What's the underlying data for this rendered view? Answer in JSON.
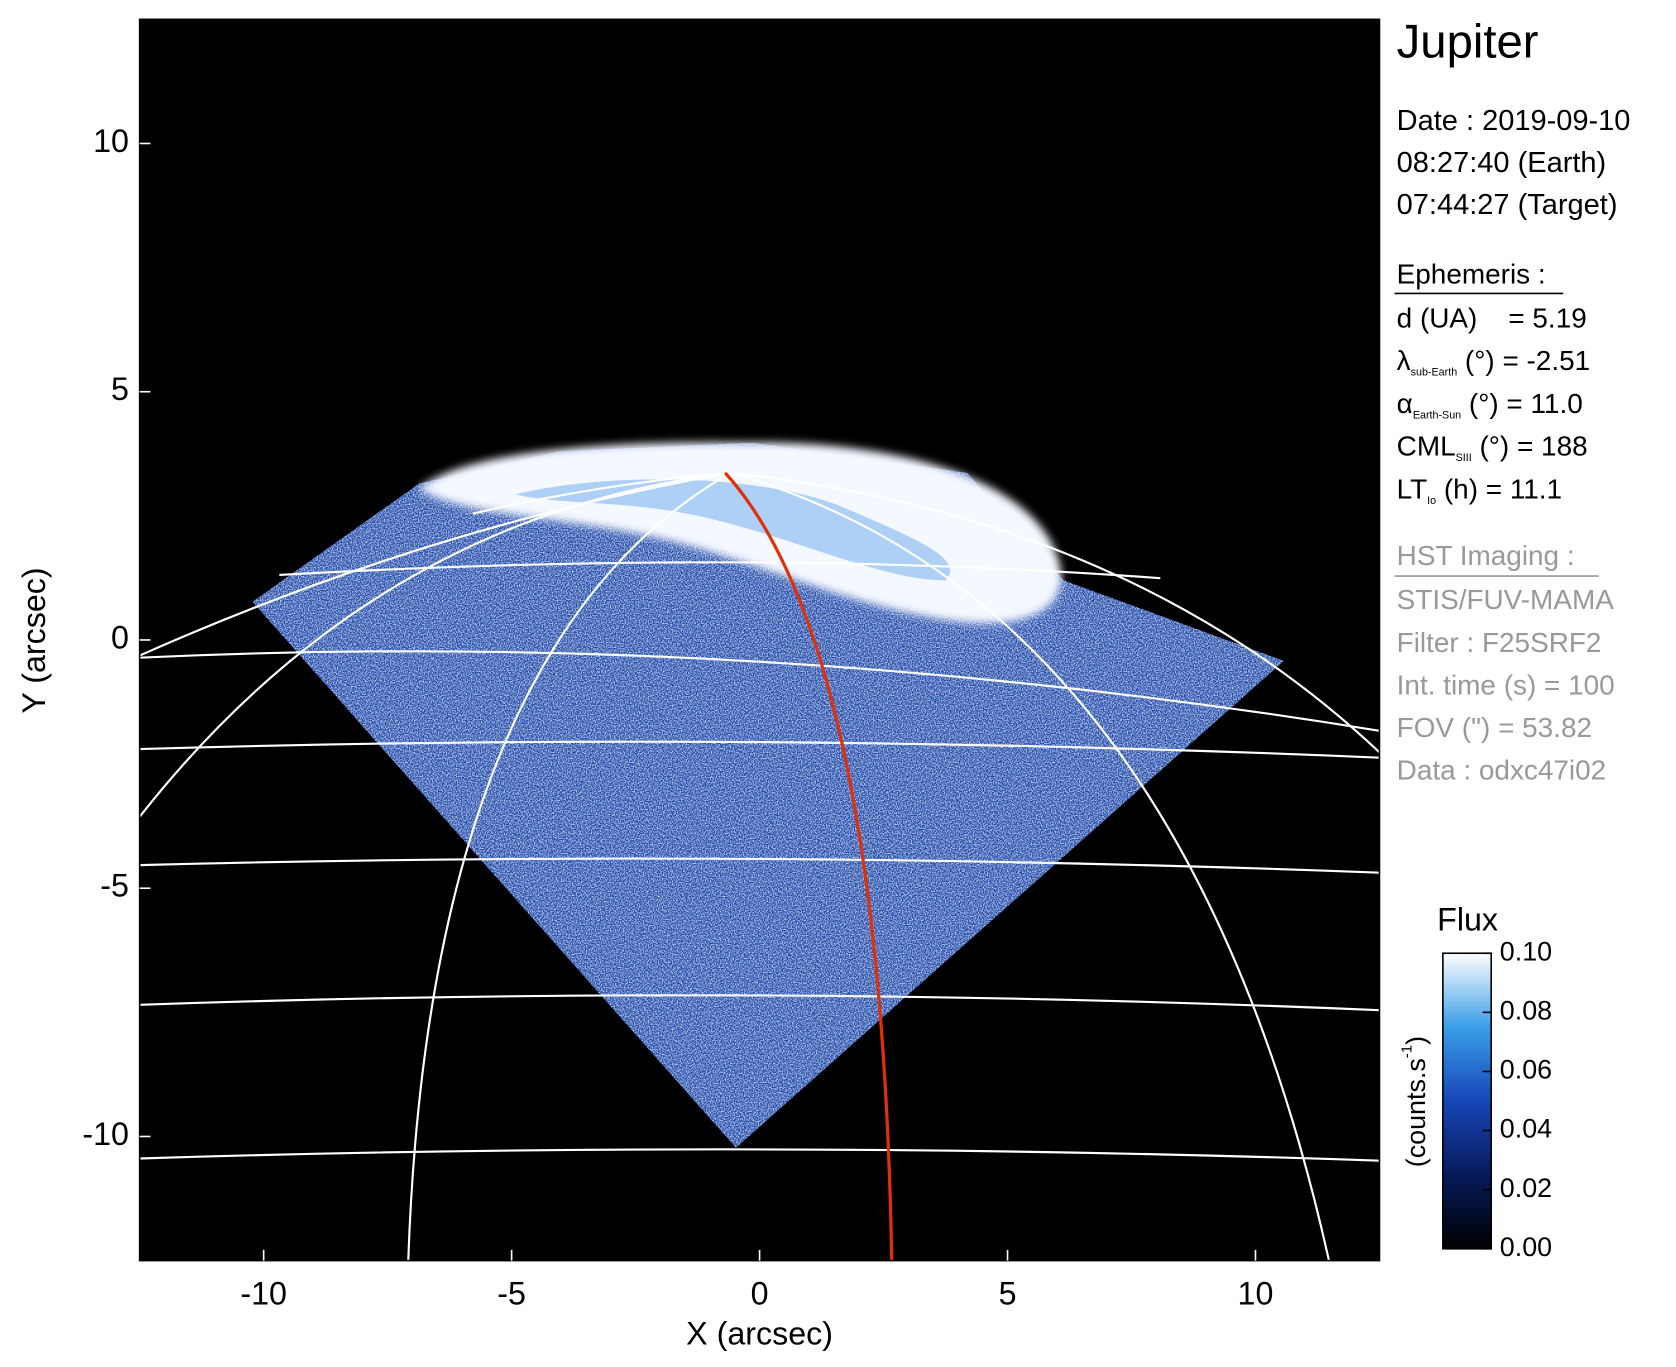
{
  "chart_data": {
    "type": "image",
    "xlabel": "X (arcsec)",
    "ylabel": "Y (arcsec)",
    "xlim": [
      -12.5,
      12.5
    ],
    "ylim": [
      -12.5,
      12.5
    ],
    "xticks": [
      -10,
      -5,
      0,
      5,
      10
    ],
    "yticks": [
      -10,
      -5,
      0,
      5,
      10
    ],
    "colorbar": {
      "title": "Flux",
      "label": "(counts.s",
      "label_superscript": "-1",
      "label_end": ")",
      "clim": [
        0,
        0.1
      ],
      "ticks": [
        {
          "value": 0,
          "label": "0.00"
        },
        {
          "value": 0.02,
          "label": "0.02"
        },
        {
          "value": 0.04,
          "label": "0.04"
        },
        {
          "value": 0.06,
          "label": "0.06"
        },
        {
          "value": 0.08,
          "label": "0.08"
        },
        {
          "value": 0.1,
          "label": "0.10"
        }
      ]
    }
  },
  "info": {
    "target": "Jupiter",
    "date_lines": [
      "Date : 2019-09-10",
      "08:27:40 (Earth)",
      "07:44:27 (Target)"
    ],
    "ephemeris_title": "Ephemeris :",
    "ephemeris": [
      {
        "symbol": "d (UA)    = 5.19"
      },
      {
        "symbol": "λ",
        "subscript": "sub-Earth",
        "text": " (°) = -2.51"
      },
      {
        "symbol": "α",
        "subscript": "Earth-Sun",
        "text": " (°) = 11.0"
      },
      {
        "symbol": "CML",
        "subscript": "SIII",
        "text": " (°) = 188"
      },
      {
        "symbol": "LT",
        "subscript": "Io",
        "text": " (h) = 11.1"
      }
    ],
    "imaging_title": "HST Imaging :",
    "imaging": [
      "STIS/FUV-MAMA",
      "Filter : F25SRF2",
      "Int. time (s) = 100",
      "FOV (\") = 53.82",
      "Data : odxc47i02"
    ]
  }
}
